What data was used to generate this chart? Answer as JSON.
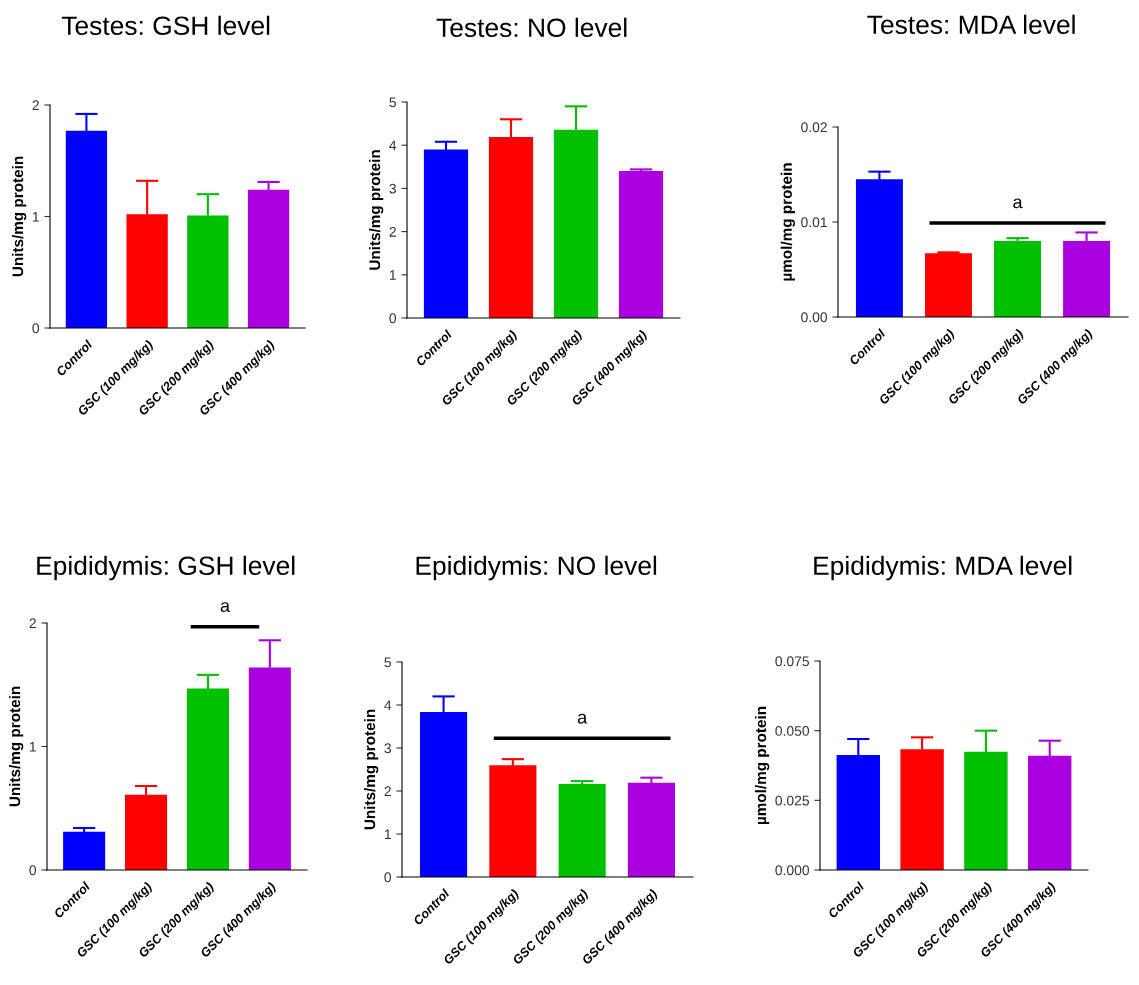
{
  "chart_data": [
    {
      "type": "bar",
      "title": "Testes: GSH level",
      "ylabel": "Units/mg protein",
      "categories": [
        "Control",
        "GSC (100 mg/kg)",
        "GSC (200 mg/kg)",
        "GSC (400 mg/kg)"
      ],
      "values": [
        1.77,
        1.02,
        1.01,
        1.24
      ],
      "errors": [
        0.15,
        0.3,
        0.19,
        0.07
      ],
      "colors": [
        "#0000ff",
        "#ff0000",
        "#00c000",
        "#aa00e0"
      ],
      "ylim": [
        0,
        2
      ],
      "yticks": [
        0,
        1,
        2
      ],
      "grid": false
    },
    {
      "type": "bar",
      "title": "Testes: NO level",
      "ylabel": "Units/mg protein",
      "categories": [
        "Control",
        "GSC (100 mg/kg)",
        "GSC (200 mg/kg)",
        "GSC (400 mg/kg)"
      ],
      "values": [
        3.9,
        4.19,
        4.36,
        3.4
      ],
      "errors": [
        0.18,
        0.41,
        0.54,
        0.04
      ],
      "colors": [
        "#0000ff",
        "#ff0000",
        "#00c000",
        "#aa00e0"
      ],
      "ylim": [
        0,
        5
      ],
      "yticks": [
        0,
        1,
        2,
        3,
        4,
        5
      ],
      "grid": false
    },
    {
      "type": "bar",
      "title": "Testes: MDA level",
      "ylabel": "µmol/mg protein",
      "categories": [
        "Control",
        "GSC (100 mg/kg)",
        "GSC (200 mg/kg)",
        "GSC (400 mg/kg)"
      ],
      "values": [
        0.0145,
        0.0067,
        0.008,
        0.008
      ],
      "errors": [
        0.0008,
        0.0001,
        0.0003,
        0.0009
      ],
      "colors": [
        "#0000ff",
        "#ff0000",
        "#00c000",
        "#aa00e0"
      ],
      "ylim": [
        0,
        0.02
      ],
      "yticks": [
        {
          "value": 0,
          "label": "0.00"
        },
        {
          "value": 0.01,
          "label": "0.01"
        },
        {
          "value": 0.02,
          "label": "0.02"
        }
      ],
      "annotations": [
        "a"
      ],
      "grid": false
    },
    {
      "type": "bar",
      "title": "Epididymis: GSH level",
      "ylabel": "Units/mg protein",
      "categories": [
        "Control",
        "GSC (100 mg/kg)",
        "GSC (200 mg/kg)",
        "GSC (400 mg/kg)"
      ],
      "values": [
        0.31,
        0.61,
        1.47,
        1.64
      ],
      "errors": [
        0.03,
        0.07,
        0.11,
        0.22
      ],
      "colors": [
        "#0000ff",
        "#ff0000",
        "#00c000",
        "#aa00e0"
      ],
      "ylim": [
        0,
        2
      ],
      "yticks": [
        0,
        1,
        2
      ],
      "annotations": [
        "a"
      ],
      "grid": false
    },
    {
      "type": "bar",
      "title": "Epididymis: NO level",
      "ylabel": "Units/mg protein",
      "categories": [
        "Control",
        "GSC (100 mg/kg)",
        "GSC (200 mg/kg)",
        "GSC (400 mg/kg)"
      ],
      "values": [
        3.84,
        2.6,
        2.16,
        2.19
      ],
      "errors": [
        0.36,
        0.14,
        0.07,
        0.12
      ],
      "colors": [
        "#0000ff",
        "#ff0000",
        "#00c000",
        "#aa00e0"
      ],
      "ylim": [
        0,
        5
      ],
      "yticks": [
        0,
        1,
        2,
        3,
        4,
        5
      ],
      "annotations": [
        "a"
      ],
      "grid": false
    },
    {
      "type": "bar",
      "title": "Epididymis: MDA level",
      "ylabel": "µmol/mg protein",
      "categories": [
        "Control",
        "GSC (100 mg/kg)",
        "GSC (200 mg/kg)",
        "GSC (400 mg/kg)"
      ],
      "values": [
        0.0413,
        0.0433,
        0.0424,
        0.041
      ],
      "errors": [
        0.0057,
        0.0043,
        0.0076,
        0.0054
      ],
      "colors": [
        "#0000ff",
        "#ff0000",
        "#00c000",
        "#aa00e0"
      ],
      "ylim": [
        0,
        0.075
      ],
      "yticks": [
        {
          "value": 0,
          "label": "0.000"
        },
        {
          "value": 0.025,
          "label": "0.025"
        },
        {
          "value": 0.05,
          "label": "0.050"
        },
        {
          "value": 0.075,
          "label": "0.075"
        }
      ],
      "grid": false
    }
  ]
}
